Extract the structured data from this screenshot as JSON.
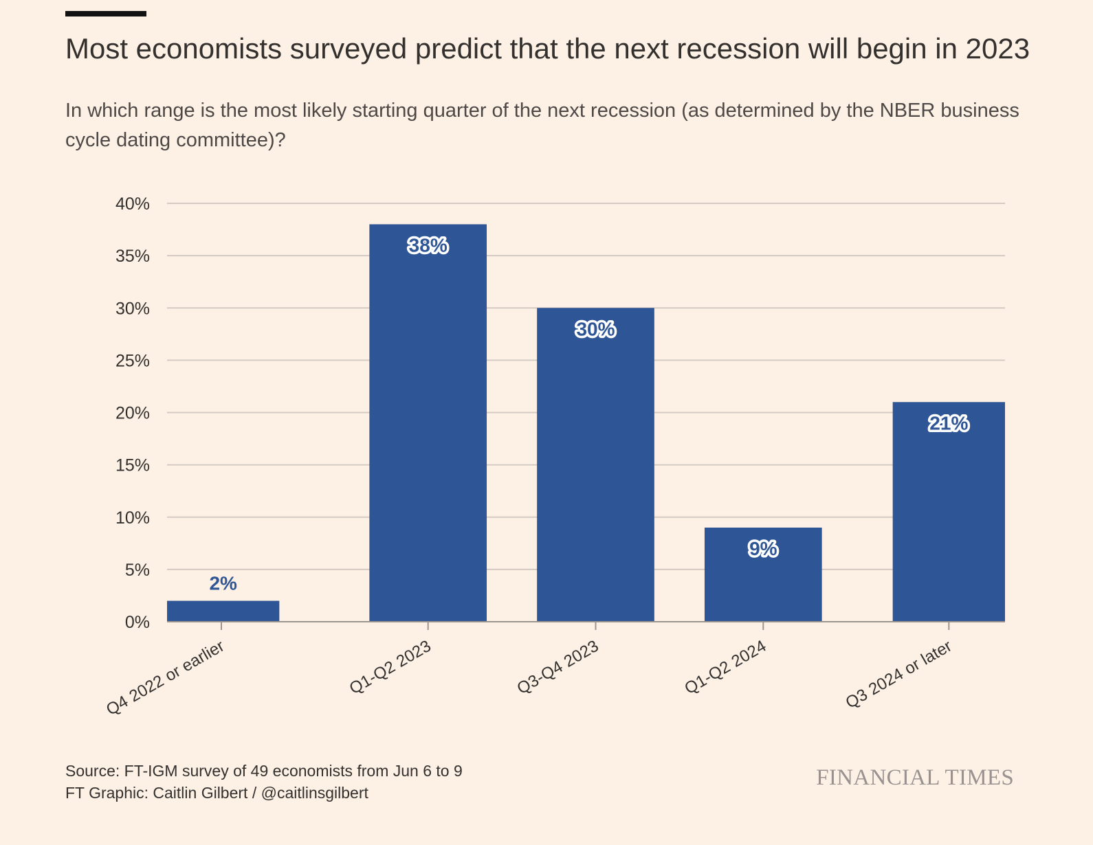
{
  "header": {
    "title": "Most economists surveyed predict that the next recession will begin in 2023",
    "subtitle": "In which range is the most likely starting quarter of the next recession (as determined by the NBER business cycle dating committee)?"
  },
  "footer": {
    "source": "Source: FT-IGM survey of 49 economists from Jun 6 to 9",
    "credit": "FT Graphic: Caitlin Gilbert / @caitlinsgilbert",
    "brand": "FINANCIAL TIMES"
  },
  "colors": {
    "background": "#fdf1e6",
    "bar": "#2e5596",
    "gridline": "#d3cbc3",
    "axis": "#9c958f",
    "text": "#33302e"
  },
  "chart_data": {
    "type": "bar",
    "categories": [
      "Q4 2022 or earlier",
      "Q1-Q2 2023",
      "Q3-Q4 2023",
      "Q1-Q2 2024",
      "Q3 2024 or later"
    ],
    "values": [
      2,
      38,
      30,
      9,
      21
    ],
    "data_labels": [
      "2%",
      "38%",
      "30%",
      "9%",
      "21%"
    ],
    "y_ticks": [
      0,
      5,
      10,
      15,
      20,
      25,
      30,
      35,
      40
    ],
    "y_tick_labels": [
      "0%",
      "5%",
      "10%",
      "15%",
      "20%",
      "25%",
      "30%",
      "35%",
      "40%"
    ],
    "ylim": [
      0,
      40
    ],
    "grid": true,
    "legend": "none"
  }
}
